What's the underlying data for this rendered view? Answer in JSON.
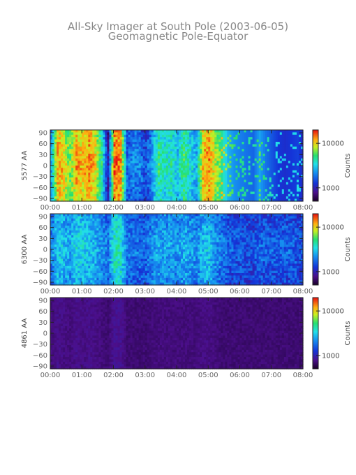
{
  "title": {
    "line1": "All-Sky Imager at South Pole (2003-06-05)",
    "line2": "Geomagnetic Pole-Equator"
  },
  "chart_data": [
    {
      "type": "heatmap",
      "ylabel": "5577 AA",
      "colorbar_label": "Counts",
      "colorbar_ticks": [
        1000,
        10000
      ],
      "colorbar_tick_labels": [
        "1000",
        "10000"
      ],
      "colorbar_log": true,
      "x_tick_labels": [
        "00:00",
        "01:00",
        "02:00",
        "03:00",
        "04:00",
        "05:00",
        "06:00",
        "07:00",
        "08:00"
      ],
      "y_ticks": [
        90,
        60,
        30,
        0,
        -30,
        -60,
        -90
      ],
      "y_tick_labels": [
        "90",
        "60",
        "30",
        "0",
        "−30",
        "−60",
        "−90"
      ],
      "xlim_hours": [
        0,
        8
      ],
      "ylim": [
        -90,
        90
      ],
      "intensity_profile": [
        0.45,
        0.88,
        0.82,
        0.7,
        0.88,
        0.84,
        0.9,
        0.82,
        0.6,
        0.2,
        0.95,
        0.9,
        0.35,
        0.4,
        0.38,
        0.3,
        0.45,
        0.62,
        0.55,
        0.58,
        0.5,
        0.65,
        0.55,
        0.45,
        0.86,
        0.9,
        0.75,
        0.65,
        0.5,
        0.45,
        0.42,
        0.4,
        0.38,
        0.48,
        0.4,
        0.35,
        0.3,
        0.28,
        0.3,
        0.32,
        0.25
      ]
    },
    {
      "type": "heatmap",
      "ylabel": "6300 AA",
      "colorbar_label": "Counts",
      "colorbar_ticks": [
        1000,
        10000
      ],
      "colorbar_tick_labels": [
        "1000",
        "10000"
      ],
      "colorbar_log": true,
      "x_tick_labels": [
        "00:00",
        "01:00",
        "02:00",
        "03:00",
        "04:00",
        "05:00",
        "06:00",
        "07:00",
        "08:00"
      ],
      "y_ticks": [
        90,
        60,
        30,
        0,
        -30,
        -60,
        -90
      ],
      "y_tick_labels": [
        "90",
        "60",
        "30",
        "0",
        "−30",
        "−60",
        "−90"
      ],
      "xlim_hours": [
        0,
        8
      ],
      "ylim": [
        -90,
        90
      ],
      "intensity_profile": [
        0.4,
        0.5,
        0.48,
        0.45,
        0.52,
        0.5,
        0.48,
        0.46,
        0.42,
        0.38,
        0.58,
        0.56,
        0.38,
        0.36,
        0.36,
        0.35,
        0.42,
        0.45,
        0.44,
        0.44,
        0.42,
        0.46,
        0.44,
        0.4,
        0.48,
        0.5,
        0.42,
        0.38,
        0.34,
        0.32,
        0.32,
        0.3,
        0.3,
        0.34,
        0.33,
        0.33,
        0.34,
        0.33,
        0.34,
        0.32,
        0.3
      ]
    },
    {
      "type": "heatmap",
      "ylabel": "4861 AA",
      "colorbar_label": "Counts",
      "colorbar_ticks": [
        1000,
        10000
      ],
      "colorbar_tick_labels": [
        "1000",
        "10000"
      ],
      "colorbar_log": true,
      "x_tick_labels": [
        "00:00",
        "01:00",
        "02:00",
        "03:00",
        "04:00",
        "05:00",
        "06:00",
        "07:00",
        "08:00"
      ],
      "y_ticks": [
        90,
        60,
        30,
        0,
        -30,
        -60,
        -90
      ],
      "y_tick_labels": [
        "90",
        "60",
        "30",
        "0",
        "−30",
        "−60",
        "−90"
      ],
      "xlim_hours": [
        0,
        8
      ],
      "ylim": [
        -90,
        90
      ],
      "intensity_profile": [
        0.1,
        0.12,
        0.11,
        0.1,
        0.12,
        0.11,
        0.12,
        0.11,
        0.1,
        0.09,
        0.13,
        0.13,
        0.09,
        0.09,
        0.09,
        0.09,
        0.1,
        0.1,
        0.1,
        0.1,
        0.1,
        0.1,
        0.1,
        0.1,
        0.11,
        0.11,
        0.1,
        0.09,
        0.09,
        0.09,
        0.09,
        0.09,
        0.09,
        0.09,
        0.09,
        0.09,
        0.09,
        0.09,
        0.09,
        0.09,
        0.09
      ]
    }
  ]
}
